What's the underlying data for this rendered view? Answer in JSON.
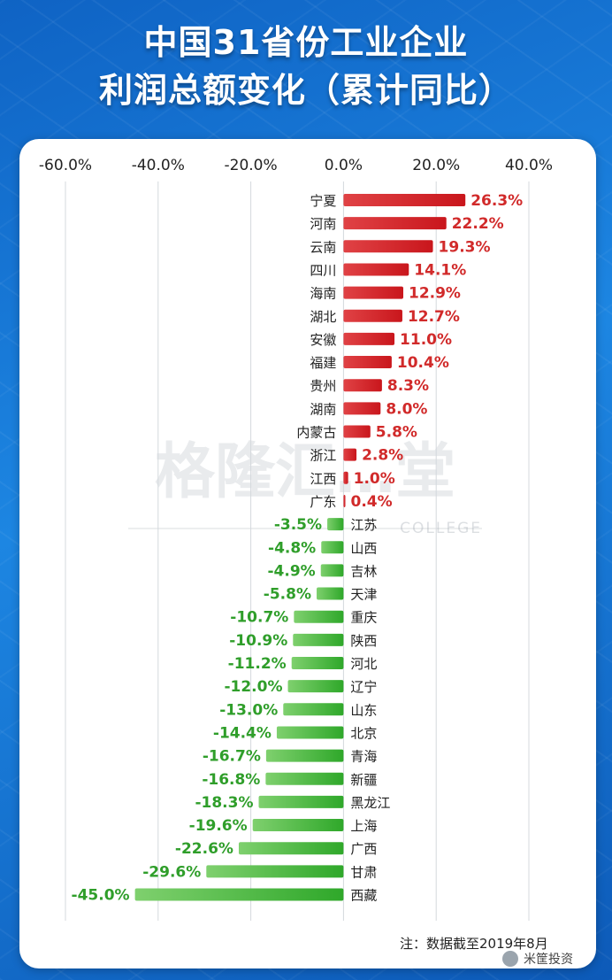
{
  "header": {
    "title_line1": "中国31省份工业企业",
    "title_line2": "利润总额变化（累计同比）"
  },
  "watermark": {
    "text": "格隆汇…堂",
    "sub": "COLLEGE"
  },
  "note": "注：数据截至2019年8月",
  "brand_label": "米筐投资",
  "colors": {
    "positive": "#d8282e",
    "negative": "#46b83c",
    "positive_label": "#d12a2a",
    "negative_label": "#2f9e2a"
  },
  "chart_data": {
    "type": "bar",
    "orientation": "horizontal",
    "title": "中国31省份工业企业利润总额变化（累计同比）",
    "xlim": [
      -60,
      40
    ],
    "x_ticks": [
      "-60.0%",
      "-40.0%",
      "-20.0%",
      "0.0%",
      "20.0%",
      "40.0%"
    ],
    "grid": true,
    "categories": [
      "宁夏",
      "河南",
      "云南",
      "四川",
      "海南",
      "湖北",
      "安徽",
      "福建",
      "贵州",
      "湖南",
      "内蒙古",
      "浙江",
      "江西",
      "广东",
      "江苏",
      "山西",
      "吉林",
      "天津",
      "重庆",
      "陕西",
      "河北",
      "辽宁",
      "山东",
      "北京",
      "青海",
      "新疆",
      "黑龙江",
      "上海",
      "广西",
      "甘肃",
      "西藏"
    ],
    "values": [
      26.3,
      22.2,
      19.3,
      14.1,
      12.9,
      12.7,
      11.0,
      10.4,
      8.3,
      8.0,
      5.8,
      2.8,
      1.0,
      0.4,
      -3.5,
      -4.8,
      -4.9,
      -5.8,
      -10.7,
      -10.9,
      -11.2,
      -12.0,
      -13.0,
      -14.4,
      -16.7,
      -16.8,
      -18.3,
      -19.6,
      -22.6,
      -29.6,
      -45.0
    ],
    "labels": [
      "26.3%",
      "22.2%",
      "19.3%",
      "14.1%",
      "12.9%",
      "12.7%",
      "11.0%",
      "10.4%",
      "8.3%",
      "8.0%",
      "5.8%",
      "2.8%",
      "1.0%",
      "0.4%",
      "-3.5%",
      "-4.8%",
      "-4.9%",
      "-5.8%",
      "-10.7%",
      "-10.9%",
      "-11.2%",
      "-12.0%",
      "-13.0%",
      "-14.4%",
      "-16.7%",
      "-16.8%",
      "-18.3%",
      "-19.6%",
      "-22.6%",
      "-29.6%",
      "-45.0%"
    ]
  }
}
